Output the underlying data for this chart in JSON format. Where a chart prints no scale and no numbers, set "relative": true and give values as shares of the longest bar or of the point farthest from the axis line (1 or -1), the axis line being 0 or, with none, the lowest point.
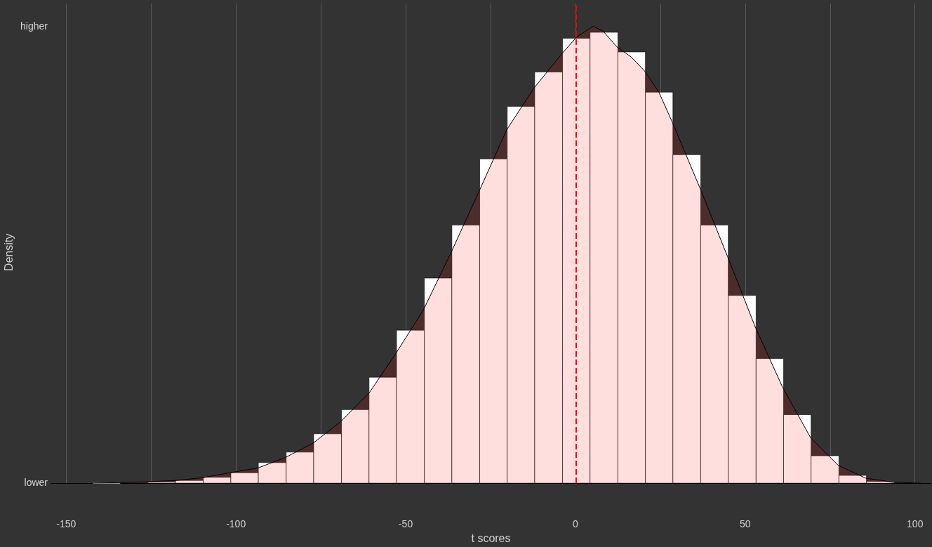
{
  "chart_data": {
    "type": "histogram",
    "xlabel": "t scores",
    "ylabel": "Density",
    "relative": true,
    "grid": "x",
    "xlim": [
      -154.4,
      104.6
    ],
    "xticks": [
      -150,
      {
        "value": -125,
        "label": null
      },
      -100,
      {
        "value": -75,
        "label": null
      },
      -50,
      {
        "value": -25,
        "label": null
      },
      0,
      {
        "value": 25,
        "label": null
      },
      50,
      {
        "value": 75,
        "label": null
      },
      100
    ],
    "annotations": [
      "higher",
      "lower"
    ],
    "ref_lines": [
      {
        "axis": "x",
        "value": 0.2,
        "color": "#ff0000",
        "line_style": "dashed"
      }
    ],
    "series": [
      {
        "color": "#ffffff",
        "bins": [
          -142.2,
          -134.1,
          -125.9,
          -117.8,
          -109.6,
          -101.5,
          -93.4,
          -85.2,
          -77.1,
          -68.9,
          -60.8,
          -52.7,
          -44.5,
          -36.4,
          -28.2,
          -20.1,
          -12.0,
          -3.8,
          4.3,
          12.5,
          20.6,
          28.7,
          36.9,
          45.0,
          53.2,
          61.3,
          69.4,
          77.6,
          85.7,
          93.9,
          102.0
        ],
        "values": [
          0,
          null,
          0.003,
          0.006,
          0.013,
          0.023,
          0.045,
          0.068,
          0.108,
          0.161,
          0.232,
          0.335,
          0.449,
          0.565,
          0.71,
          0.825,
          0.9,
          0.974,
          0.987,
          0.944,
          0.856,
          0.719,
          0.565,
          0.411,
          0.273,
          0.15,
          0.06,
          0.017,
          0.004,
          null
        ]
      },
      {
        "type": "area",
        "color": "#ff0000",
        "x": [
          -142.3,
          -129.7,
          -117.6,
          -109.8,
          -101.7,
          -93.6,
          -85.5,
          -77.2,
          -69.1,
          -60.8,
          -52.9,
          -44.8,
          -36.5,
          -28.2,
          -20.3,
          -12.2,
          -3.9,
          0.4,
          5.2,
          8.1,
          12.2,
          16.4,
          20.3,
          24.5,
          28.6,
          36.9,
          44.8,
          52.9,
          61.0,
          69.3,
          77.4,
          85.5,
          93.8,
          101.7
        ],
        "values": [
          0,
          0.002,
          0.006,
          0.012,
          0.023,
          0.033,
          0.056,
          0.088,
          0.135,
          0.197,
          0.284,
          0.379,
          0.507,
          0.642,
          0.773,
          0.865,
          0.941,
          0.977,
          1,
          0.99,
          0.955,
          0.933,
          0.903,
          0.857,
          0.789,
          0.642,
          0.496,
          0.343,
          0.21,
          0.099,
          0.039,
          0.011,
          0.002,
          0
        ]
      }
    ]
  }
}
